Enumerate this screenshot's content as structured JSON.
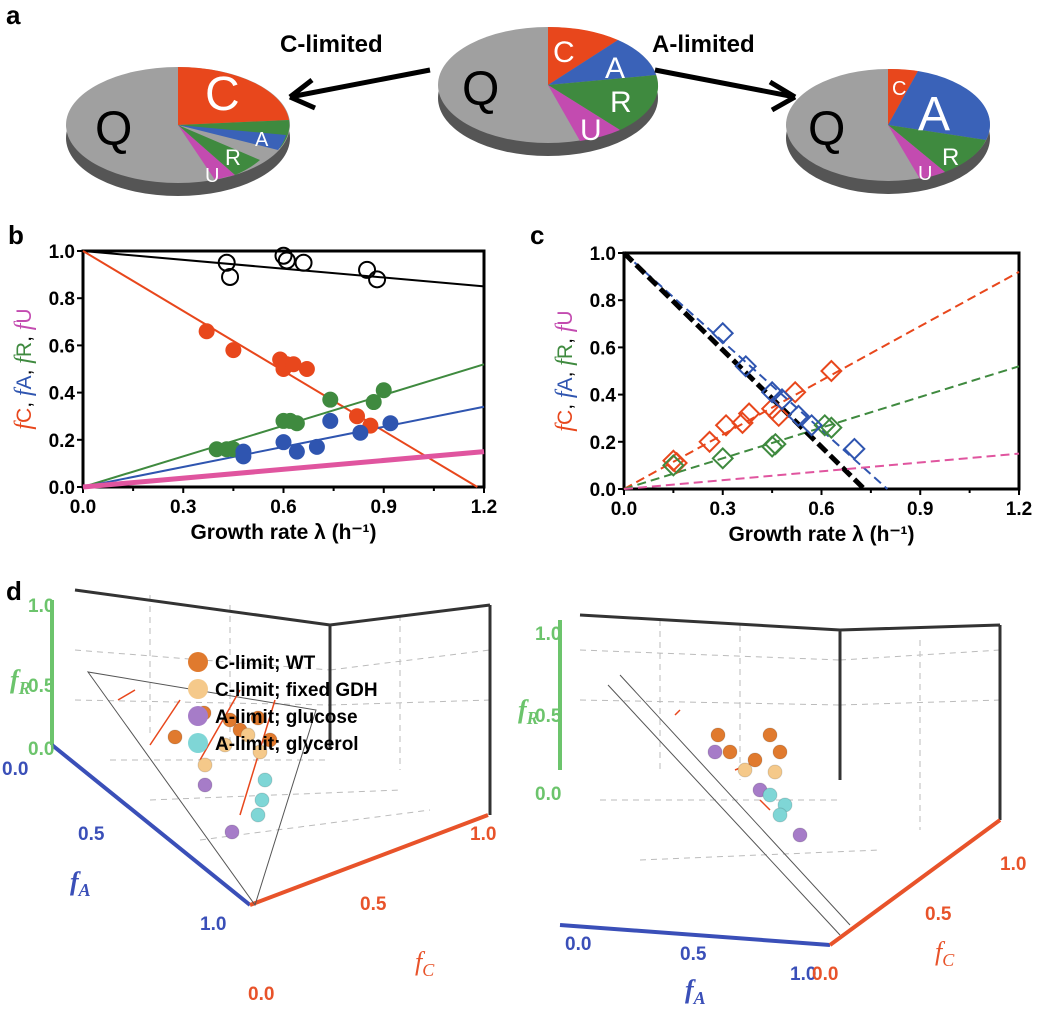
{
  "panel_labels": {
    "a": "a",
    "b": "b",
    "c": "c",
    "d": "d"
  },
  "panel_a": {
    "arrow_left_label": "C-limited",
    "arrow_right_label": "A-limited",
    "pie_labels": {
      "Q": "Q",
      "C": "C",
      "A": "A",
      "R": "R",
      "U": "U"
    }
  },
  "colors": {
    "C": "#e8471c",
    "A": "#3a62b8",
    "R": "#3f8a3f",
    "U": "#c34bb0",
    "Q": "#a0a0a0",
    "fU_line": "#e0559f"
  },
  "chart_data": [
    {
      "panel": "b",
      "type": "scatter",
      "xlabel": "Growth rate λ (h⁻¹)",
      "ylabel_parts": [
        "f",
        "C",
        ", ",
        "f",
        "A",
        ", ",
        "f",
        "R",
        ", ",
        "f",
        "U"
      ],
      "xlim": [
        0,
        1.2
      ],
      "ylim": [
        0,
        1.0
      ],
      "xticks": [
        "0.0",
        "0.3",
        "0.6",
        "0.9",
        "1.2"
      ],
      "yticks": [
        "0.0",
        "0.2",
        "0.4",
        "0.6",
        "0.8",
        "1.0"
      ],
      "series": [
        {
          "name": "total (open)",
          "marker": "open-circle",
          "color": "#000000",
          "points": [
            [
              0.43,
              0.95
            ],
            [
              0.44,
              0.89
            ],
            [
              0.6,
              0.98
            ],
            [
              0.61,
              0.96
            ],
            [
              0.66,
              0.95
            ],
            [
              0.85,
              0.92
            ],
            [
              0.88,
              0.88
            ]
          ],
          "line": [
            [
              0,
              1.0
            ],
            [
              1.2,
              0.85
            ]
          ]
        },
        {
          "name": "fC",
          "marker": "filled-circle",
          "color": "#e8471c",
          "points": [
            [
              0.37,
              0.66
            ],
            [
              0.45,
              0.58
            ],
            [
              0.59,
              0.54
            ],
            [
              0.6,
              0.5
            ],
            [
              0.61,
              0.52
            ],
            [
              0.63,
              0.52
            ],
            [
              0.67,
              0.5
            ],
            [
              0.82,
              0.3
            ],
            [
              0.86,
              0.26
            ]
          ],
          "line": [
            [
              0,
              1.0
            ],
            [
              1.18,
              0.0
            ]
          ]
        },
        {
          "name": "fR",
          "marker": "filled-circle",
          "color": "#3f8a3f",
          "points": [
            [
              0.4,
              0.16
            ],
            [
              0.43,
              0.16
            ],
            [
              0.45,
              0.16
            ],
            [
              0.6,
              0.28
            ],
            [
              0.62,
              0.28
            ],
            [
              0.64,
              0.27
            ],
            [
              0.74,
              0.37
            ],
            [
              0.87,
              0.36
            ],
            [
              0.9,
              0.41
            ]
          ],
          "line": [
            [
              0,
              0
            ],
            [
              1.2,
              0.52
            ]
          ]
        },
        {
          "name": "fA",
          "marker": "filled-circle",
          "color": "#2f55b0",
          "points": [
            [
              0.48,
              0.15
            ],
            [
              0.48,
              0.13
            ],
            [
              0.6,
              0.19
            ],
            [
              0.64,
              0.15
            ],
            [
              0.7,
              0.17
            ],
            [
              0.74,
              0.28
            ],
            [
              0.83,
              0.23
            ],
            [
              0.92,
              0.27
            ]
          ],
          "line": [
            [
              0,
              0
            ],
            [
              1.2,
              0.34
            ]
          ]
        },
        {
          "name": "fU",
          "marker": "none",
          "color": "#e0559f",
          "points": [],
          "line": [
            [
              0,
              0
            ],
            [
              1.2,
              0.15
            ]
          ],
          "thick": true
        }
      ]
    },
    {
      "panel": "c",
      "type": "scatter",
      "xlabel": "Growth rate λ (h⁻¹)",
      "ylabel_parts": [
        "f",
        "C",
        ", ",
        "f",
        "A",
        ", ",
        "f",
        "R",
        ", ",
        "f",
        "U"
      ],
      "xlim": [
        0,
        1.2
      ],
      "ylim": [
        0,
        1.0
      ],
      "xticks": [
        "0.0",
        "0.3",
        "0.6",
        "0.9",
        "1.2"
      ],
      "yticks": [
        "0.0",
        "0.2",
        "0.4",
        "0.6",
        "0.8",
        "1.0"
      ],
      "series": [
        {
          "name": "fC",
          "marker": "open-diamond",
          "color": "#e8471c",
          "points": [
            [
              0.15,
              0.12
            ],
            [
              0.16,
              0.11
            ],
            [
              0.26,
              0.2
            ],
            [
              0.31,
              0.27
            ],
            [
              0.36,
              0.28
            ],
            [
              0.38,
              0.32
            ],
            [
              0.45,
              0.34
            ],
            [
              0.47,
              0.31
            ],
            [
              0.52,
              0.41
            ],
            [
              0.63,
              0.5
            ]
          ],
          "line": [
            [
              0,
              0
            ],
            [
              1.2,
              0.92
            ]
          ],
          "dashed": true
        },
        {
          "name": "fR",
          "marker": "open-diamond",
          "color": "#3f8a3f",
          "points": [
            [
              0.15,
              0.1
            ],
            [
              0.3,
              0.13
            ],
            [
              0.45,
              0.18
            ],
            [
              0.46,
              0.19
            ],
            [
              0.61,
              0.27
            ],
            [
              0.63,
              0.26
            ]
          ],
          "line": [
            [
              0,
              0
            ],
            [
              1.2,
              0.52
            ]
          ],
          "dashed": true
        },
        {
          "name": "fA",
          "marker": "open-diamond",
          "color": "#2f55b0",
          "points": [
            [
              0.3,
              0.66
            ],
            [
              0.37,
              0.52
            ],
            [
              0.45,
              0.41
            ],
            [
              0.48,
              0.38
            ],
            [
              0.53,
              0.31
            ],
            [
              0.57,
              0.27
            ],
            [
              0.7,
              0.17
            ]
          ],
          "line": [
            [
              0,
              1.0
            ],
            [
              0.8,
              0.0
            ]
          ],
          "dashed": true
        },
        {
          "name": "total",
          "marker": "none",
          "color": "#000000",
          "points": [],
          "line": [
            [
              0,
              1.0
            ],
            [
              0.73,
              0.0
            ]
          ],
          "dashed": true,
          "thick": true
        },
        {
          "name": "fU",
          "marker": "none",
          "color": "#e0559f",
          "points": [],
          "line": [
            [
              0,
              0
            ],
            [
              1.2,
              0.15
            ]
          ],
          "dashed": true
        }
      ]
    },
    {
      "panel": "d",
      "type": "scatter3d",
      "axes": {
        "fR": "f",
        "fR_sub": "R",
        "fA": "f",
        "fA_sub": "A",
        "fC": "f",
        "fC_sub": "C"
      },
      "tick_labels": {
        "fR": [
          "0.0",
          "0.5",
          "1.0"
        ],
        "fA": [
          "0.0",
          "0.5",
          "1.0"
        ],
        "fC": [
          "0.0",
          "0.5",
          "1.0"
        ]
      },
      "legend": [
        {
          "label": "C-limit; WT",
          "color": "#e07a2e"
        },
        {
          "label": "C-limit; fixed GDH",
          "color": "#f5c98a"
        },
        {
          "label": "A-limit; glucose",
          "color": "#a67cc8"
        },
        {
          "label": "A-limit; glycerol",
          "color": "#7fd6d6"
        }
      ]
    }
  ]
}
